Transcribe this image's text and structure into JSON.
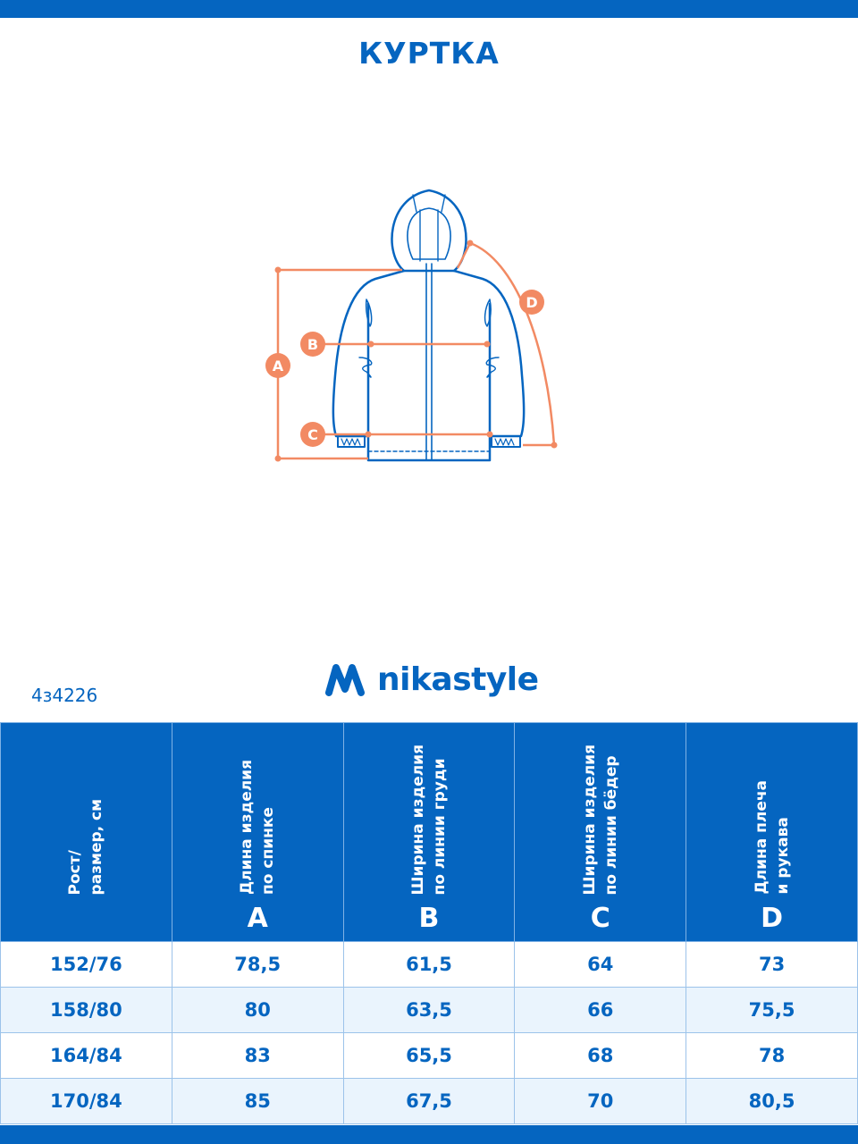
{
  "title": "КУРТКА",
  "article": "4з4226",
  "brand": "nikastyle",
  "colors": {
    "primary": "#0565c0",
    "measure": "#f28a63",
    "row_alt": "#eaf4fd"
  },
  "diagram_labels": {
    "a": "A",
    "b": "B",
    "c": "C",
    "d": "D"
  },
  "table": {
    "headers": [
      {
        "line1": "Рост/",
        "line2": "размер, см",
        "letter": ""
      },
      {
        "line1": "Длина изделия",
        "line2": "по спинке",
        "letter": "A"
      },
      {
        "line1": "Ширина изделия",
        "line2": "по линии груди",
        "letter": "B"
      },
      {
        "line1": "Ширина изделия",
        "line2": "по линии бёдер",
        "letter": "C"
      },
      {
        "line1": "Длина плеча",
        "line2": "и рукава",
        "letter": "D"
      }
    ],
    "rows": [
      [
        "152/76",
        "78,5",
        "61,5",
        "64",
        "73"
      ],
      [
        "158/80",
        "80",
        "63,5",
        "66",
        "75,5"
      ],
      [
        "164/84",
        "83",
        "65,5",
        "68",
        "78"
      ],
      [
        "170/84",
        "85",
        "67,5",
        "70",
        "80,5"
      ]
    ]
  }
}
